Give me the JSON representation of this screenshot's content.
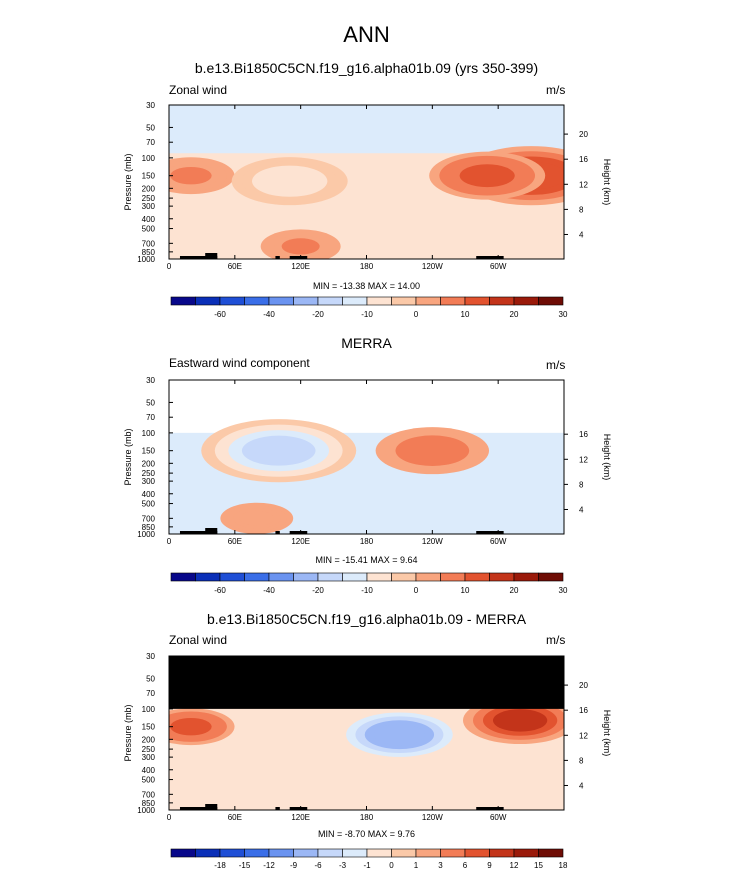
{
  "figure": {
    "title": "ANN"
  },
  "colors": {
    "palette_panels_1_2": [
      "#08088a",
      "#0a2fb8",
      "#1f4fd6",
      "#3a6ee8",
      "#6a93f0",
      "#9bb7f5",
      "#c6d8fa",
      "#dcebfb",
      "#fde3d2",
      "#fbc9a8",
      "#f8a57f",
      "#f27c56",
      "#e2532f",
      "#c3341a",
      "#9a1a0a",
      "#6e0c05"
    ],
    "palette_panel_3": [
      "#08088a",
      "#0a2fb8",
      "#1f4fd6",
      "#3a6ee8",
      "#6a93f0",
      "#9bb7f5",
      "#c6d8fa",
      "#dcebfb",
      "#fde3d2",
      "#fbc9a8",
      "#f8a57f",
      "#f27c56",
      "#e2532f",
      "#c3341a",
      "#9a1a0a",
      "#6e0c05"
    ],
    "land": "#000000",
    "missing": "#000000"
  },
  "chart_data": [
    {
      "type": "heatmap",
      "title": "b.e13.Bi1850C5CN.f19_g16.alpha01b.09 (yrs 350-399)",
      "left_label": "Zonal wind",
      "right_label": "m/s",
      "ylabel": "Pressure (mb)",
      "y2label": "Height (km)",
      "x_ticks": [
        "0",
        "60E",
        "120E",
        "180",
        "120W",
        "60W"
      ],
      "x_values": [
        0,
        60,
        120,
        180,
        240,
        300
      ],
      "xlim": [
        0,
        360
      ],
      "y_ticks": [
        "30",
        "50",
        "70",
        "100",
        "150",
        "200",
        "250",
        "300",
        "400",
        "500",
        "700",
        "850",
        "1000"
      ],
      "y_values": [
        30,
        50,
        70,
        100,
        150,
        200,
        250,
        300,
        400,
        500,
        700,
        850,
        1000
      ],
      "ylim": [
        1000,
        30
      ],
      "height_ticks": [
        "4",
        "8",
        "12",
        "16",
        "20"
      ],
      "height_values": [
        4,
        8,
        12,
        16,
        20
      ],
      "min_max_label": "MIN = -13.38   MAX =  14.00",
      "min": -13.38,
      "max": 14.0,
      "colorbar_levels": [
        -70,
        -60,
        -50,
        -40,
        -30,
        -20,
        -15,
        -10,
        -5,
        0,
        5,
        10,
        15,
        20,
        25,
        30
      ],
      "colorbar_labels": [
        "-60",
        "-40",
        "-20",
        "-10",
        "0",
        "10",
        "20",
        "30"
      ],
      "features": [
        {
          "kind": "weak_westerly_background",
          "value": 2
        },
        {
          "kind": "easterly_band_stratosphere",
          "value": -5,
          "p_range": [
            30,
            90
          ]
        },
        {
          "kind": "westerly_max",
          "lon": 330,
          "p": 150,
          "value": 14.0
        },
        {
          "kind": "westerly_jet",
          "lon": 290,
          "p": 150,
          "value": 10
        },
        {
          "kind": "westerly_jet",
          "lon": 20,
          "p": 150,
          "value": 6
        },
        {
          "kind": "easterly_core",
          "lon": 110,
          "p": 170,
          "value": -10
        },
        {
          "kind": "westerly_low_level",
          "lon": 120,
          "p": 750,
          "value": 5
        }
      ]
    },
    {
      "type": "heatmap",
      "title": "MERRA",
      "left_label": "Eastward wind component",
      "right_label": "m/s",
      "ylabel": "Pressure (mb)",
      "y2label": "Height (km)",
      "x_ticks": [
        "0",
        "60E",
        "120E",
        "180",
        "120W",
        "60W"
      ],
      "x_values": [
        0,
        60,
        120,
        180,
        240,
        300
      ],
      "xlim": [
        0,
        360
      ],
      "y_ticks": [
        "30",
        "50",
        "70",
        "100",
        "150",
        "200",
        "250",
        "300",
        "400",
        "500",
        "700",
        "850",
        "1000"
      ],
      "y_values": [
        30,
        50,
        70,
        100,
        150,
        200,
        250,
        300,
        400,
        500,
        700,
        850,
        1000
      ],
      "ylim": [
        1000,
        30
      ],
      "height_ticks": [
        "4",
        "8",
        "12",
        "16"
      ],
      "height_values": [
        4,
        8,
        12,
        16
      ],
      "min_max_label": "MIN = -15.41   MAX =   9.64",
      "min": -15.41,
      "max": 9.64,
      "data_top_pressure": 100,
      "colorbar_levels": [
        -70,
        -60,
        -50,
        -40,
        -30,
        -20,
        -15,
        -10,
        -5,
        0,
        5,
        10,
        15,
        20,
        25,
        30
      ],
      "colorbar_labels": [
        "-60",
        "-40",
        "-20",
        "-10",
        "0",
        "10",
        "20",
        "30"
      ],
      "features": [
        {
          "kind": "westerly_max",
          "lon": 240,
          "p": 150,
          "value": 9.64
        },
        {
          "kind": "easterly_core",
          "lon": 100,
          "p": 150,
          "value": -15.41
        },
        {
          "kind": "westerly_low_level",
          "lon": 80,
          "p": 700,
          "value": 4
        }
      ]
    },
    {
      "type": "heatmap",
      "title": "b.e13.Bi1850C5CN.f19_g16.alpha01b.09 - MERRA",
      "left_label": "Zonal wind",
      "right_label": "m/s",
      "ylabel": "Pressure (mb)",
      "y2label": "Height (km)",
      "x_ticks": [
        "0",
        "60E",
        "120E",
        "180",
        "120W",
        "60W"
      ],
      "x_values": [
        0,
        60,
        120,
        180,
        240,
        300
      ],
      "xlim": [
        0,
        360
      ],
      "y_ticks": [
        "30",
        "50",
        "70",
        "100",
        "150",
        "200",
        "250",
        "300",
        "400",
        "500",
        "700",
        "850",
        "1000"
      ],
      "y_values": [
        30,
        50,
        70,
        100,
        150,
        200,
        250,
        300,
        400,
        500,
        700,
        850,
        1000
      ],
      "ylim": [
        1000,
        30
      ],
      "height_ticks": [
        "4",
        "8",
        "12",
        "16",
        "20"
      ],
      "height_values": [
        4,
        8,
        12,
        16,
        20
      ],
      "min_max_label": "MIN = -8.70   MAX =  9.76",
      "min": -8.7,
      "max": 9.76,
      "missing_above_pressure": 100,
      "colorbar_levels": [
        -21,
        -18,
        -15,
        -12,
        -9,
        -6,
        -3,
        -1,
        0,
        1,
        3,
        6,
        9,
        12,
        15,
        18
      ],
      "colorbar_labels": [
        "-18",
        "-15",
        "-12",
        "-9",
        "-6",
        "-3",
        "-1",
        "0",
        "1",
        "3",
        "6",
        "9",
        "12",
        "15",
        "18"
      ],
      "features": [
        {
          "kind": "negative_core",
          "lon": 210,
          "p": 180,
          "value": -8.7
        },
        {
          "kind": "positive_max",
          "lon": 320,
          "p": 130,
          "value": 9.76
        },
        {
          "kind": "positive_region",
          "lon": 20,
          "p": 150,
          "value": 6
        }
      ]
    }
  ]
}
